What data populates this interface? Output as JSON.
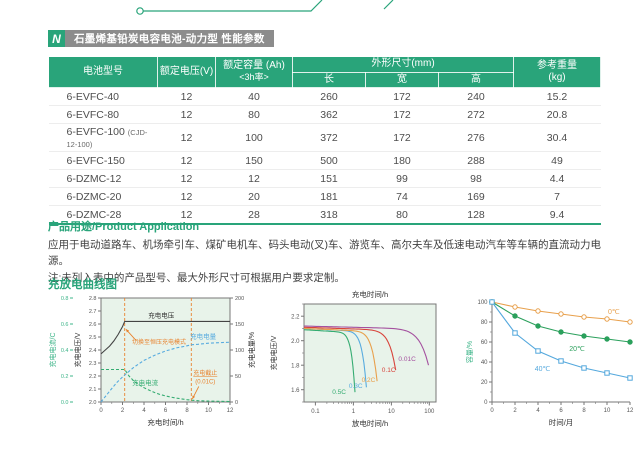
{
  "colors": {
    "green": "#29a47a",
    "chart_bg": "#e8f3ea",
    "orange": "#e8832f",
    "blue": "#57abdf",
    "curve_green": "#35ac72",
    "red": "#d8443c",
    "purple": "#a4519f",
    "axis_dark": "#555555",
    "title_bar_gray": "#8c8c8c"
  },
  "header": {
    "icon": "lightning-n-icon",
    "title": "石墨烯基铅炭电容电池-动力型 性能参数"
  },
  "table": {
    "headers": {
      "model": "电池型号",
      "voltage": "额定电压(V)",
      "capacity_line1": "额定容量 (Ah)",
      "capacity_line2": "<3h率>",
      "dimensions": "外形尺寸(mm)",
      "length": "长",
      "width": "宽",
      "height": "高",
      "weight_line1": "参考重量",
      "weight_line2": "(kg)"
    },
    "rows": [
      {
        "model": "6-EVFC-40",
        "note": "",
        "voltage": "12",
        "capacity": "40",
        "length": "260",
        "width": "172",
        "height": "240",
        "weight": "15.2"
      },
      {
        "model": "6-EVFC-80",
        "note": "",
        "voltage": "12",
        "capacity": "80",
        "length": "362",
        "width": "172",
        "height": "272",
        "weight": "20.8"
      },
      {
        "model": "6-EVFC-100",
        "note": "(CJD-12-100)",
        "voltage": "12",
        "capacity": "100",
        "length": "372",
        "width": "172",
        "height": "276",
        "weight": "30.4"
      },
      {
        "model": "6-EVFC-150",
        "note": "",
        "voltage": "12",
        "capacity": "150",
        "length": "500",
        "width": "180",
        "height": "288",
        "weight": "49"
      },
      {
        "model": "6-DZMC-12",
        "note": "",
        "voltage": "12",
        "capacity": "12",
        "length": "151",
        "width": "99",
        "height": "98",
        "weight": "4.4"
      },
      {
        "model": "6-DZMC-20",
        "note": "",
        "voltage": "12",
        "capacity": "20",
        "length": "181",
        "width": "74",
        "height": "169",
        "weight": "7"
      },
      {
        "model": "6-DZMC-28",
        "note": "",
        "voltage": "12",
        "capacity": "28",
        "length": "318",
        "width": "80",
        "height": "128",
        "weight": "9.4"
      }
    ]
  },
  "application": {
    "title": "产品用途/Product Application",
    "line1": "应用于电动道路车、机场牵引车、煤矿电机车、码头电动(叉)车、游览车、高尔夫车及低速电动汽车等车辆的直流动力电源。",
    "line2": "注:未列入表中的产品型号、最大外形尺寸可根据用户要求定制。"
  },
  "curves": {
    "title": "充放电曲线图"
  },
  "chart_data": [
    {
      "type": "line",
      "name": "charge-curves",
      "xlabel": "充电时间/h",
      "xlim": [
        0,
        12
      ],
      "x_ticks": [
        0,
        2,
        4,
        6,
        8,
        10,
        12
      ],
      "axes": {
        "current": {
          "label": "充电电流/C",
          "lim": [
            0,
            0.8
          ],
          "ticks": [
            0.0,
            0.2,
            0.4,
            0.6,
            0.8
          ],
          "color": "#3cb488"
        },
        "voltage": {
          "label": "充电电压/V",
          "lim": [
            2.0,
            2.8
          ],
          "ticks": [
            2.0,
            2.1,
            2.2,
            2.3,
            2.4,
            2.5,
            2.6,
            2.7,
            2.8
          ]
        },
        "percent": {
          "label": "充电电量/%",
          "lim": [
            0,
            200
          ],
          "ticks": [
            0,
            50,
            100,
            150,
            200
          ]
        }
      },
      "vlines": [
        2.2,
        8.4
      ],
      "series": [
        {
          "name": "充电电压",
          "axis": "voltage",
          "style": "solid",
          "color": "#444444",
          "points": [
            [
              0,
              2.37
            ],
            [
              0.4,
              2.4
            ],
            [
              0.8,
              2.43
            ],
            [
              1.2,
              2.47
            ],
            [
              1.6,
              2.52
            ],
            [
              2.0,
              2.58
            ],
            [
              2.2,
              2.62
            ],
            [
              12,
              2.62
            ]
          ]
        },
        {
          "name": "充电电量",
          "axis": "percent",
          "style": "dashed",
          "color": "#57abdf",
          "points": [
            [
              0,
              0
            ],
            [
              0.5,
              13
            ],
            [
              1,
              26
            ],
            [
              1.5,
              38
            ],
            [
              2,
              48
            ],
            [
              2.2,
              52
            ],
            [
              3,
              66
            ],
            [
              3.5,
              73
            ],
            [
              4,
              80
            ],
            [
              4.5,
              85
            ],
            [
              5,
              90
            ],
            [
              5.5,
              94
            ],
            [
              6,
              98
            ],
            [
              6.5,
              101
            ],
            [
              7,
              104
            ],
            [
              7.5,
              106
            ],
            [
              8,
              108
            ],
            [
              8.4,
              110
            ],
            [
              9,
              111
            ],
            [
              10,
              113
            ],
            [
              11,
              114
            ],
            [
              12,
              115
            ]
          ]
        },
        {
          "name": "充电电流",
          "axis": "current",
          "style": "dashed",
          "color": "#35ac72",
          "points": [
            [
              0,
              0.25
            ],
            [
              2.2,
              0.25
            ],
            [
              2.6,
              0.2
            ],
            [
              3,
              0.165
            ],
            [
              3.5,
              0.135
            ],
            [
              4,
              0.11
            ],
            [
              4.5,
              0.09
            ],
            [
              5,
              0.072
            ],
            [
              5.5,
              0.058
            ],
            [
              6,
              0.047
            ],
            [
              6.5,
              0.038
            ],
            [
              7,
              0.03
            ],
            [
              7.5,
              0.024
            ],
            [
              8,
              0.018
            ],
            [
              8.4,
              0.014
            ],
            [
              9,
              0.01
            ],
            [
              10,
              0.007
            ],
            [
              11,
              0.005
            ],
            [
              12,
              0.004
            ]
          ]
        }
      ],
      "annotations": {
        "cv_switch": "切换至恒压充电模式",
        "cutoff_line1": "充电截止",
        "cutoff_line2": "(0.01C)"
      }
    },
    {
      "type": "line",
      "name": "discharge-curves",
      "top_label": "充电时间/h",
      "xlabel": "放电时间/h",
      "ylabel": "充电电压/V",
      "xscale": "log",
      "xlim": [
        0.05,
        150
      ],
      "x_ticks": [
        0.1,
        1,
        10,
        100
      ],
      "ylim": [
        1.5,
        2.3
      ],
      "y_ticks": [
        1.6,
        1.8,
        2.0,
        2.2
      ],
      "series": [
        {
          "name": "0.5C",
          "color": "#35ac72",
          "plateau": 2.09,
          "end_v": 1.58,
          "duration": 1.1,
          "label_xy": [
            0.42,
            1.565
          ]
        },
        {
          "name": "0.3C",
          "color": "#57abdf",
          "plateau": 2.1,
          "end_v": 1.62,
          "duration": 2.2,
          "label_xy": [
            1.15,
            1.615
          ]
        },
        {
          "name": "0.2C",
          "color": "#e8a04c",
          "plateau": 2.1,
          "end_v": 1.67,
          "duration": 4.2,
          "label_xy": [
            2.5,
            1.665
          ]
        },
        {
          "name": "0.1C",
          "color": "#d8443c",
          "plateau": 2.11,
          "end_v": 1.76,
          "duration": 13,
          "label_xy": [
            8.5,
            1.745
          ]
        },
        {
          "name": "0.01C",
          "color": "#a4519f",
          "plateau": 2.12,
          "end_v": 1.8,
          "duration": 95,
          "label_xy": [
            26,
            1.835
          ]
        }
      ]
    },
    {
      "type": "line",
      "name": "self-discharge-curves",
      "xlabel": "时间/月",
      "ylabel": "容量/%",
      "ylabel_color": "#3cb488",
      "xlim": [
        0,
        12
      ],
      "x_ticks": [
        0,
        2,
        4,
        6,
        8,
        10,
        12
      ],
      "ylim": [
        0,
        100
      ],
      "y_ticks": [
        0,
        20,
        40,
        60,
        80,
        100
      ],
      "categories": [
        0,
        2,
        4,
        6,
        8,
        10,
        12
      ],
      "series": [
        {
          "name": "0℃",
          "color": "#e8a04c",
          "marker": "circle-open",
          "values": [
            100,
            95,
            91,
            88,
            85,
            83,
            80
          ],
          "label_xy": [
            10.6,
            88
          ]
        },
        {
          "name": "20℃",
          "color": "#2ba05c",
          "marker": "circle-filled",
          "values": [
            100,
            86,
            76,
            70,
            66,
            63,
            60
          ],
          "label_xy": [
            7.4,
            51
          ]
        },
        {
          "name": "40℃",
          "color": "#54a8dd",
          "marker": "square-open",
          "values": [
            100,
            69,
            51,
            41,
            34,
            29,
            24
          ],
          "label_xy": [
            4.4,
            31
          ]
        }
      ]
    }
  ]
}
